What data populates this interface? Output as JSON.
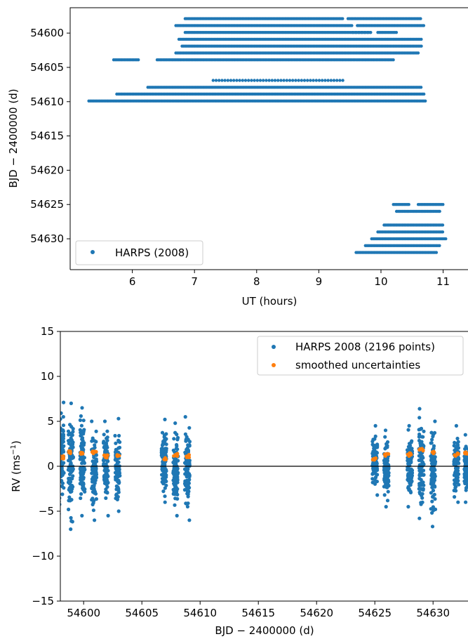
{
  "colors": {
    "blue": "#1f77b4",
    "orange": "#ff7f0e",
    "axis": "#000000"
  },
  "chart_data": [
    {
      "type": "scatter",
      "xlabel": "UT (hours)",
      "ylabel": "BJD − 2400000 (d)",
      "xlim": [
        5.0,
        11.4
      ],
      "ylim": [
        54634.5,
        54596.3
      ],
      "y_inverted": true,
      "xticks": [
        6,
        7,
        8,
        9,
        10,
        11
      ],
      "yticks": [
        54600,
        54605,
        54610,
        54615,
        54620,
        54625,
        54630
      ],
      "legend": {
        "position": "lower-left",
        "entries": [
          {
            "label": "HARPS (2008)",
            "color": "#1f77b4"
          }
        ]
      },
      "nights": [
        {
          "bjd": 54597.9,
          "segments": [
            [
              6.85,
              9.4
            ],
            [
              9.47,
              10.65
            ]
          ]
        },
        {
          "bjd": 54598.9,
          "segments": [
            [
              6.7,
              9.55
            ],
            [
              9.62,
              10.7
            ]
          ]
        },
        {
          "bjd": 54599.9,
          "segments": [
            [
              6.85,
              9.85
            ],
            [
              9.95,
              10.25
            ]
          ],
          "sparse_segments": [
            [
              9.55,
              9.85
            ]
          ]
        },
        {
          "bjd": 54600.9,
          "segments": [
            [
              6.75,
              10.65
            ]
          ]
        },
        {
          "bjd": 54601.9,
          "segments": [
            [
              6.8,
              10.65
            ]
          ]
        },
        {
          "bjd": 54602.9,
          "segments": [
            [
              6.7,
              10.6
            ]
          ]
        },
        {
          "bjd": 54603.9,
          "segments": [
            [
              5.7,
              6.1
            ],
            [
              6.4,
              10.2
            ]
          ]
        },
        {
          "bjd": 54606.9,
          "sparse_segments": [
            [
              7.3,
              9.4
            ]
          ]
        },
        {
          "bjd": 54607.9,
          "segments": [
            [
              6.25,
              10.65
            ]
          ]
        },
        {
          "bjd": 54608.9,
          "segments": [
            [
              5.75,
              10.7
            ]
          ]
        },
        {
          "bjd": 54609.9,
          "segments": [
            [
              5.3,
              10.72
            ]
          ]
        },
        {
          "bjd": 54625.0,
          "segments": [
            [
              10.2,
              10.45
            ],
            [
              10.6,
              11.0
            ]
          ]
        },
        {
          "bjd": 54626.0,
          "segments": [
            [
              10.25,
              10.95
            ]
          ]
        },
        {
          "bjd": 54628.0,
          "segments": [
            [
              10.05,
              11.0
            ]
          ]
        },
        {
          "bjd": 54629.0,
          "segments": [
            [
              9.95,
              11.0
            ]
          ]
        },
        {
          "bjd": 54630.0,
          "segments": [
            [
              9.85,
              11.05
            ]
          ]
        },
        {
          "bjd": 54631.0,
          "segments": [
            [
              9.75,
              10.95
            ]
          ]
        },
        {
          "bjd": 54632.0,
          "segments": [
            [
              9.6,
              10.9
            ]
          ]
        }
      ]
    },
    {
      "type": "scatter",
      "xlabel": "BJD − 2400000 (d)",
      "ylabel": "RV (ms⁻¹)",
      "ylabel_base": "RV (ms",
      "ylabel_sup": "−1",
      "ylabel_close": ")",
      "xlim": [
        54598.0,
        54633.0
      ],
      "ylim": [
        -15,
        15
      ],
      "xticks": [
        54600,
        54605,
        54610,
        54615,
        54620,
        54625,
        54630
      ],
      "yticks": [
        -15,
        -10,
        -5,
        0,
        5,
        10,
        15
      ],
      "reference_line": 0,
      "legend": {
        "position": "upper-right",
        "entries": [
          {
            "label": "HARPS 2008 (2196 points)",
            "color": "#1f77b4"
          },
          {
            "label": "smoothed uncertainties",
            "color": "#ff7f0e"
          }
        ]
      },
      "rv_columns": [
        {
          "x": 54598.1,
          "min": -5.3,
          "max": 7.1,
          "unc": 1.0
        },
        {
          "x": 54598.9,
          "min": -7.0,
          "max": 7.0,
          "unc": 1.6
        },
        {
          "x": 54599.9,
          "min": -5.5,
          "max": 6.5,
          "unc": 1.4
        },
        {
          "x": 54600.9,
          "min": -6.0,
          "max": 5.0,
          "unc": 1.5
        },
        {
          "x": 54601.9,
          "min": -5.5,
          "max": 5.0,
          "unc": 1.1
        },
        {
          "x": 54602.9,
          "min": -5.0,
          "max": 5.3,
          "unc": 1.1
        },
        {
          "x": 54606.9,
          "min": -4.0,
          "max": 5.2,
          "unc": 0.9
        },
        {
          "x": 54607.9,
          "min": -5.5,
          "max": 4.8,
          "unc": 1.3
        },
        {
          "x": 54608.9,
          "min": -6.0,
          "max": 5.5,
          "unc": 1.1
        },
        {
          "x": 54625.0,
          "min": -3.2,
          "max": 4.5,
          "unc": 0.9
        },
        {
          "x": 54626.0,
          "min": -4.5,
          "max": 4.0,
          "unc": 1.2
        },
        {
          "x": 54628.0,
          "min": -4.5,
          "max": 4.5,
          "unc": 1.3
        },
        {
          "x": 54629.0,
          "min": -5.8,
          "max": 6.4,
          "unc": 1.8
        },
        {
          "x": 54630.0,
          "min": -6.7,
          "max": 5.0,
          "unc": 1.5
        },
        {
          "x": 54632.0,
          "min": -4.0,
          "max": 4.5,
          "unc": 1.3
        },
        {
          "x": 54632.9,
          "min": -4.0,
          "max": 3.5,
          "unc": 1.4
        }
      ]
    }
  ]
}
